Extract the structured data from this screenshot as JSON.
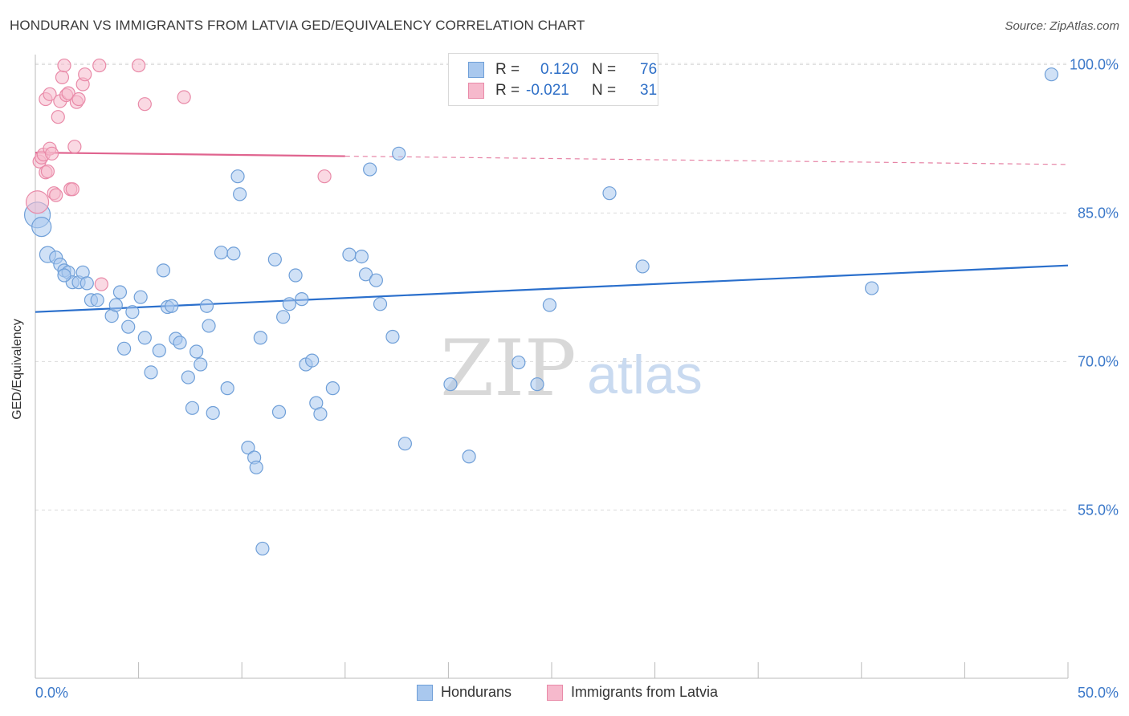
{
  "title": "HONDURAN VS IMMIGRANTS FROM LATVIA GED/EQUIVALENCY CORRELATION CHART",
  "source": "Source: ZipAtlas.com",
  "watermark": {
    "zip": "ZIP",
    "atlas": "atlas"
  },
  "legend": {
    "r_label": "R =",
    "n_label": "N =",
    "series1": {
      "r": "0.120",
      "n": "76"
    },
    "series2": {
      "r": "-0.021",
      "n": "31"
    }
  },
  "bottom_legend": {
    "series1": "Hondurans",
    "series2": "Immigrants from Latvia"
  },
  "colors": {
    "blue_fill": "#a9c8ee",
    "blue_stroke": "#6f9fd8",
    "blue_line": "#2a6fcc",
    "pink_fill": "#f6b9cc",
    "pink_stroke": "#e98aa8",
    "pink_line": "#e0648f",
    "tick_label": "#3b78c9"
  },
  "chart_data": {
    "type": "scatter",
    "title": "HONDURAN VS IMMIGRANTS FROM LATVIA GED/EQUIVALENCY CORRELATION CHART",
    "xlabel": "",
    "ylabel": "GED/Equivalency",
    "xlim": [
      0,
      50
    ],
    "ylim": [
      38,
      101
    ],
    "x_tick_labels": [
      "0.0%",
      "50.0%"
    ],
    "y_ticks": [
      55,
      70,
      85,
      100
    ],
    "y_tick_labels": [
      "55.0%",
      "70.0%",
      "85.0%",
      "100.0%"
    ],
    "grid": true,
    "legend_position": "top-center",
    "series": [
      {
        "name": "Hondurans",
        "r": 0.12,
        "n": 76,
        "trend": {
          "x": [
            0,
            50
          ],
          "y": [
            75.0,
            79.7
          ],
          "dashed_from": null
        },
        "points": [
          [
            0.1,
            84.8
          ],
          [
            0.3,
            83.6
          ],
          [
            0.6,
            80.8
          ],
          [
            1.0,
            80.5
          ],
          [
            1.2,
            79.8
          ],
          [
            1.4,
            79.2
          ],
          [
            1.6,
            79.0
          ],
          [
            1.8,
            78.0
          ],
          [
            1.4,
            78.7
          ],
          [
            2.1,
            78.0
          ],
          [
            2.3,
            79.0
          ],
          [
            2.5,
            77.9
          ],
          [
            2.7,
            76.2
          ],
          [
            3.0,
            76.2
          ],
          [
            3.7,
            74.6
          ],
          [
            3.9,
            75.7
          ],
          [
            4.1,
            77.0
          ],
          [
            4.5,
            73.5
          ],
          [
            4.7,
            75.0
          ],
          [
            5.1,
            76.5
          ],
          [
            4.3,
            71.3
          ],
          [
            5.3,
            72.4
          ],
          [
            6.0,
            71.1
          ],
          [
            5.6,
            68.9
          ],
          [
            6.2,
            79.2
          ],
          [
            6.4,
            75.5
          ],
          [
            6.6,
            75.6
          ],
          [
            6.8,
            72.3
          ],
          [
            7.0,
            71.9
          ],
          [
            7.4,
            68.4
          ],
          [
            7.6,
            65.3
          ],
          [
            7.8,
            71.0
          ],
          [
            8.0,
            69.7
          ],
          [
            8.3,
            75.6
          ],
          [
            8.4,
            73.6
          ],
          [
            8.6,
            64.8
          ],
          [
            9.0,
            81.0
          ],
          [
            9.3,
            67.3
          ],
          [
            9.6,
            80.9
          ],
          [
            9.8,
            88.7
          ],
          [
            9.9,
            86.9
          ],
          [
            10.3,
            61.3
          ],
          [
            10.6,
            60.3
          ],
          [
            10.9,
            72.4
          ],
          [
            10.7,
            59.3
          ],
          [
            11.0,
            51.1
          ],
          [
            11.6,
            80.3
          ],
          [
            11.8,
            64.9
          ],
          [
            12.0,
            74.5
          ],
          [
            12.3,
            75.8
          ],
          [
            12.6,
            78.7
          ],
          [
            12.9,
            76.3
          ],
          [
            13.1,
            69.7
          ],
          [
            13.4,
            70.1
          ],
          [
            13.6,
            65.8
          ],
          [
            13.8,
            64.7
          ],
          [
            14.4,
            67.3
          ],
          [
            15.2,
            80.8
          ],
          [
            15.8,
            80.6
          ],
          [
            16.0,
            78.8
          ],
          [
            16.5,
            78.2
          ],
          [
            16.7,
            75.8
          ],
          [
            16.2,
            89.4
          ],
          [
            17.3,
            72.5
          ],
          [
            17.6,
            91.0
          ],
          [
            17.9,
            61.7
          ],
          [
            20.1,
            67.7
          ],
          [
            21.0,
            60.4
          ],
          [
            23.4,
            69.9
          ],
          [
            24.3,
            67.7
          ],
          [
            24.9,
            75.7
          ],
          [
            27.8,
            87.0
          ],
          [
            28.7,
            99.0
          ],
          [
            29.4,
            79.6
          ],
          [
            40.5,
            77.4
          ],
          [
            49.2,
            99.0
          ]
        ]
      },
      {
        "name": "Immigrants from Latvia",
        "r": -0.021,
        "n": 31,
        "trend": {
          "x": [
            0,
            50
          ],
          "y": [
            91.1,
            89.9
          ],
          "solid_until": 15
        },
        "points": [
          [
            0.1,
            86.1
          ],
          [
            0.2,
            90.2
          ],
          [
            0.3,
            90.6
          ],
          [
            0.4,
            90.9
          ],
          [
            0.5,
            89.1
          ],
          [
            0.6,
            89.2
          ],
          [
            0.7,
            91.5
          ],
          [
            0.8,
            91.0
          ],
          [
            0.5,
            96.5
          ],
          [
            0.7,
            97.0
          ],
          [
            0.9,
            87.0
          ],
          [
            1.0,
            86.8
          ],
          [
            1.1,
            94.7
          ],
          [
            1.2,
            96.3
          ],
          [
            1.3,
            98.7
          ],
          [
            1.4,
            99.9
          ],
          [
            1.5,
            96.9
          ],
          [
            1.6,
            97.1
          ],
          [
            1.7,
            87.4
          ],
          [
            1.8,
            87.4
          ],
          [
            1.9,
            91.7
          ],
          [
            2.0,
            96.2
          ],
          [
            2.1,
            96.5
          ],
          [
            2.3,
            98.0
          ],
          [
            2.4,
            99.0
          ],
          [
            3.1,
            99.9
          ],
          [
            3.2,
            77.8
          ],
          [
            5.0,
            99.9
          ],
          [
            5.3,
            96.0
          ],
          [
            7.2,
            96.7
          ],
          [
            14.0,
            88.7
          ]
        ]
      }
    ]
  }
}
